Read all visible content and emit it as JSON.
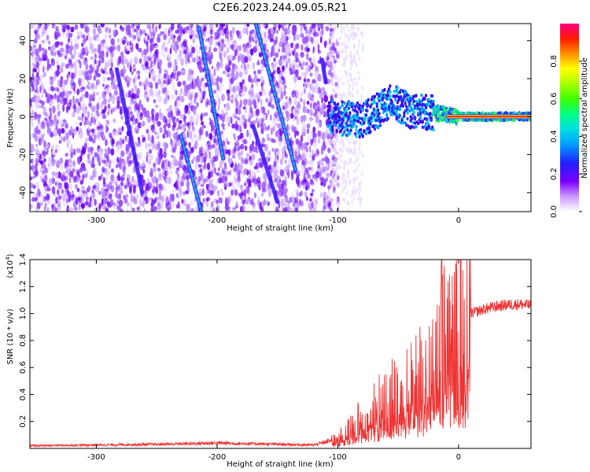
{
  "title": "C2E6.2023.244.09.05.R21",
  "chart_data": [
    {
      "type": "heatmap",
      "title": "C2E6.2023.244.09.05.R21",
      "xlabel": "Height of straight line (km)",
      "ylabel": "Frequency (Hz)",
      "xlim": [
        -355,
        60
      ],
      "ylim": [
        -50,
        49
      ],
      "xticks": [
        -300,
        -200,
        -100,
        0
      ],
      "xtick_labels": [
        "-300",
        "-200",
        "-100",
        "0"
      ],
      "yticks": [
        -40,
        -20,
        0,
        20,
        40
      ],
      "ytick_labels": [
        "-40",
        "-20",
        "0",
        "20",
        "40"
      ],
      "colorbar": {
        "label": "Normalized spectral amplitude",
        "range": [
          0,
          1
        ],
        "ticks": [
          0.0,
          0.2,
          0.4,
          0.6,
          0.8
        ],
        "tick_labels": [
          "0.0",
          "0.2",
          "0.4",
          "0.6",
          "0.8"
        ],
        "colormap": [
          "#ffffff",
          "#7a00ff",
          "#2020ff",
          "#00c0ff",
          "#00ff80",
          "#40ff00",
          "#ffff00",
          "#ff8000",
          "#ff0000",
          "#ff0080"
        ]
      },
      "streaks": [
        {
          "x": [
            -215,
            -195
          ],
          "y": [
            47,
            -22
          ]
        },
        {
          "x": [
            -168,
            -135
          ],
          "y": [
            49,
            -28
          ]
        },
        {
          "x": [
            -113,
            -110
          ],
          "y": [
            30,
            18
          ]
        },
        {
          "x": [
            -283,
            -262
          ],
          "y": [
            25,
            -40
          ]
        },
        {
          "x": [
            -230,
            -213
          ],
          "y": [
            -10,
            -50
          ]
        },
        {
          "x": [
            -170,
            -150
          ],
          "y": [
            -5,
            -45
          ]
        }
      ],
      "ridge": {
        "x": [
          -108,
          -80,
          -55,
          -40,
          -20,
          0,
          60
        ],
        "y": [
          0,
          -2,
          8,
          3,
          2,
          0,
          0
        ]
      },
      "grid": false
    },
    {
      "type": "line",
      "xlabel": "Height of straight line (km)",
      "ylabel": "SNR (10 * v/v)",
      "scale_label": "(x10",
      "scale_exp": "4",
      "xlim": [
        -355,
        60
      ],
      "ylim": [
        0,
        14000
      ],
      "xticks": [
        -300,
        -200,
        -100,
        0
      ],
      "xtick_labels": [
        "-300",
        "-200",
        "-100",
        "0"
      ],
      "yticks": [
        2000,
        4000,
        6000,
        8000,
        10000,
        12000,
        14000
      ],
      "ytick_labels": [
        "0.2",
        "0.4",
        "0.6",
        "0.8",
        "1.0",
        "1.2",
        "1.4"
      ],
      "color": "#ee3333",
      "envelope": {
        "x": [
          -355,
          -250,
          -200,
          -120,
          -100,
          -90,
          -80,
          -70,
          -60,
          -50,
          -40,
          -30,
          -20,
          -15,
          -10,
          -5,
          0,
          10,
          20,
          30,
          40,
          50,
          60
        ],
        "y": [
          200,
          300,
          400,
          250,
          700,
          1500,
          2200,
          3000,
          3500,
          4000,
          4800,
          5500,
          6500,
          7500,
          8500,
          9000,
          9500,
          10000,
          10300,
          10500,
          10650,
          10700,
          10600
        ]
      },
      "spike": {
        "x": -14,
        "y": 14000
      },
      "grid": false
    }
  ]
}
